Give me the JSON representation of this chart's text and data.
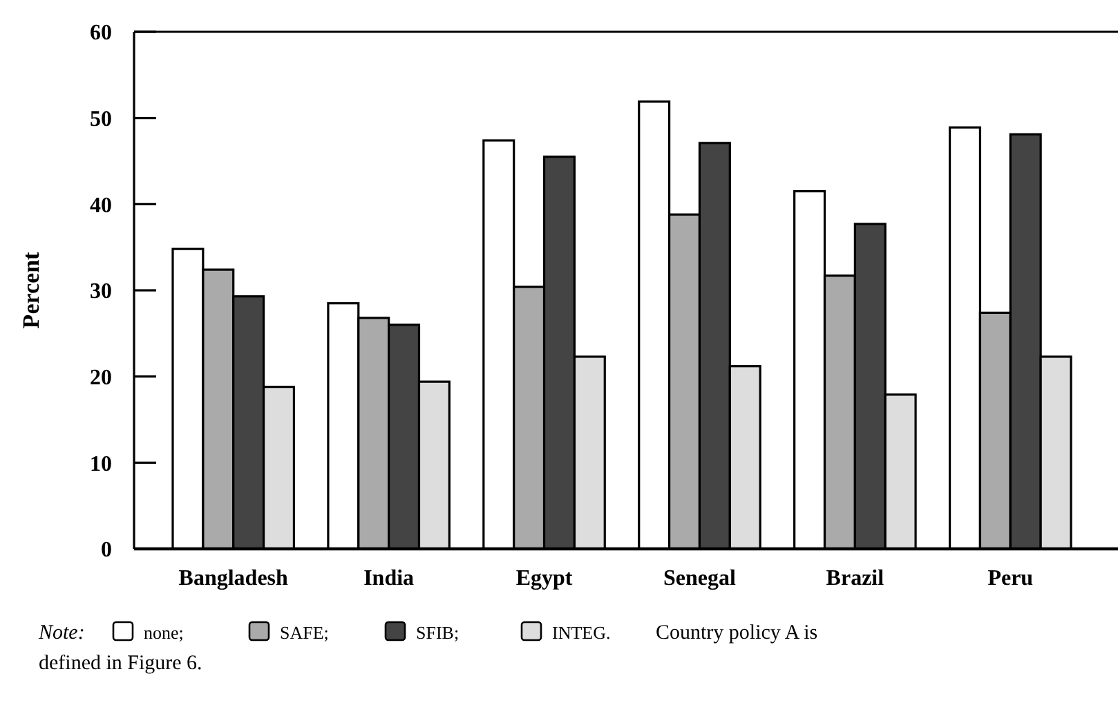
{
  "chart_data": {
    "type": "bar",
    "ylabel": "Percent",
    "legend_title": "Note:",
    "categories": [
      "Bangladesh",
      "India",
      "Egypt",
      "Senegal",
      "Brazil",
      "Peru"
    ],
    "series": [
      {
        "name": "none;",
        "color": "#ffffff",
        "values": [
          34.8,
          28.5,
          47.4,
          51.9,
          41.5,
          48.9
        ]
      },
      {
        "name": "SAFE;",
        "color": "#aaaaaa",
        "values": [
          32.4,
          26.8,
          30.4,
          38.8,
          31.7,
          27.4
        ]
      },
      {
        "name": "SFIB;",
        "color": "#444444",
        "values": [
          29.3,
          26.0,
          45.5,
          47.1,
          37.7,
          48.1
        ]
      },
      {
        "name": "INTEG.",
        "color": "#dddddd",
        "values": [
          18.8,
          19.4,
          22.3,
          21.2,
          17.9,
          22.3
        ]
      }
    ],
    "ylim": [
      0,
      60
    ],
    "yticks": [
      0,
      10,
      20,
      30,
      40,
      50,
      60
    ],
    "grid": false,
    "legend": "bottom",
    "annotations": [
      "Country policy A is defined in Figure 6."
    ]
  }
}
